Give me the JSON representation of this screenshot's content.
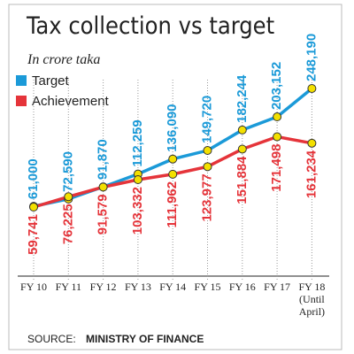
{
  "chart_data": {
    "type": "line",
    "title": "Tax collection vs target",
    "subtitle": "In crore taka",
    "categories": [
      "FY 10",
      "FY 11",
      "FY 12",
      "FY 13",
      "FY 14",
      "FY 15",
      "FY 16",
      "FY 17",
      "FY 18 (Until April)"
    ],
    "series": [
      {
        "name": "Target",
        "color": "#1b9ad8",
        "values": [
          61000,
          72590,
          91870,
          112259,
          136090,
          149720,
          182244,
          203152,
          248190
        ],
        "value_labels": [
          "61,000",
          "72,590",
          "91,870",
          "112,259",
          "136,090",
          "149,720",
          "182,244",
          "203,152",
          "248,190"
        ]
      },
      {
        "name": "Achievement",
        "color": "#e5343a",
        "values": [
          59741,
          76225,
          91579,
          103332,
          111962,
          123977,
          151884,
          171498,
          161234
        ],
        "value_labels": [
          "59,741",
          "76,225",
          "91,579",
          "103,332",
          "111,962",
          "123,977",
          "151,884",
          "171,498",
          "161,234"
        ]
      }
    ],
    "source_label": "SOURCE:",
    "source": "MINISTRY OF FINANCE"
  }
}
